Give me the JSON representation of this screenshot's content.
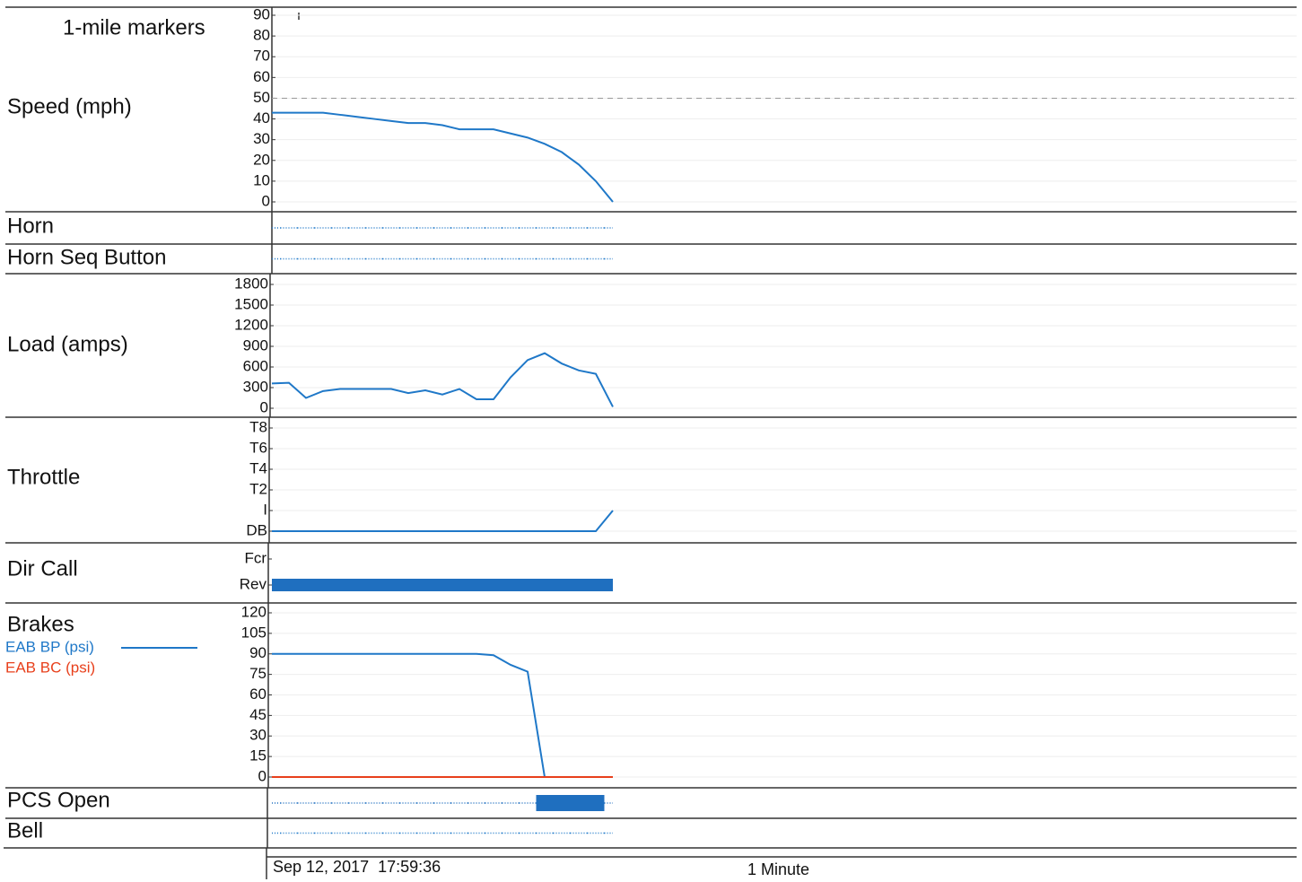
{
  "chart_data": [
    {
      "type": "line",
      "label": "Speed (mph)",
      "annotation": "1-mile markers",
      "ylim": [
        0,
        90
      ],
      "yticks": [
        0,
        10,
        20,
        30,
        40,
        50,
        60,
        70,
        80,
        90
      ],
      "grid": true,
      "reference_line": 50,
      "series": [
        {
          "color": "#1f78c8",
          "values": [
            43,
            43,
            43,
            43,
            42,
            41,
            40,
            39,
            38,
            38,
            37,
            35,
            35,
            35,
            33,
            31,
            28,
            24,
            18,
            10,
            0
          ]
        }
      ]
    },
    {
      "type": "state",
      "label": "Horn",
      "values": [
        0,
        0,
        0,
        0,
        0,
        0,
        0,
        0,
        0,
        0,
        0,
        0,
        0,
        0,
        0,
        0,
        0,
        0,
        0,
        0,
        0
      ],
      "color": "#1f78c8"
    },
    {
      "type": "state",
      "label": "Horn Seq Button",
      "values": [
        0,
        0,
        0,
        0,
        0,
        0,
        0,
        0,
        0,
        0,
        0,
        0,
        0,
        0,
        0,
        0,
        0,
        0,
        0,
        0,
        0
      ],
      "color": "#1f78c8"
    },
    {
      "type": "line",
      "label": "Load (amps)",
      "ylim": [
        0,
        1800
      ],
      "yticks": [
        0,
        300,
        600,
        900,
        1200,
        1500,
        1800
      ],
      "grid": true,
      "series": [
        {
          "color": "#1f78c8",
          "values": [
            360,
            370,
            150,
            250,
            280,
            280,
            280,
            280,
            220,
            260,
            200,
            280,
            130,
            130,
            450,
            700,
            800,
            650,
            550,
            500,
            20
          ]
        }
      ]
    },
    {
      "type": "line",
      "label": "Throttle",
      "ylim": [
        -2,
        8
      ],
      "yticks": [
        {
          "value": -2,
          "label": "DB"
        },
        {
          "value": 0,
          "label": "I"
        },
        {
          "value": 2,
          "label": "T2"
        },
        {
          "value": 4,
          "label": "T4"
        },
        {
          "value": 6,
          "label": "T6"
        },
        {
          "value": 8,
          "label": "T8"
        }
      ],
      "grid": true,
      "series": [
        {
          "color": "#1f78c8",
          "values": [
            -2,
            -2,
            -2,
            -2,
            -2,
            -2,
            -2,
            -2,
            -2,
            -2,
            -2,
            -2,
            -2,
            -2,
            -2,
            -2,
            -2,
            -2,
            -2,
            -2,
            0
          ]
        }
      ]
    },
    {
      "type": "step",
      "label": "Dir Call",
      "ylim": [
        0,
        1
      ],
      "yticks": [
        {
          "value": 0,
          "label": "Rev"
        },
        {
          "value": 1,
          "label": "Fcr"
        }
      ],
      "color": "#1f6fbf",
      "values": [
        0,
        0,
        0,
        0,
        0,
        0,
        0,
        0,
        0,
        0,
        0,
        0,
        0,
        0,
        0,
        0,
        0,
        0,
        0,
        0,
        0
      ]
    },
    {
      "type": "line",
      "label": "Brakes",
      "ylim": [
        0,
        120
      ],
      "yticks": [
        0,
        15,
        30,
        45,
        60,
        75,
        90,
        105,
        120
      ],
      "grid": true,
      "series": [
        {
          "name": "EAB BP (psi)",
          "color": "#1f78c8",
          "values": [
            90,
            90,
            90,
            90,
            90,
            90,
            90,
            90,
            90,
            90,
            90,
            90,
            90,
            89,
            82,
            77,
            0,
            0,
            0,
            0,
            0
          ]
        },
        {
          "name": "EAB BC (psi)",
          "color": "#e8401c",
          "values": [
            0,
            0,
            0,
            0,
            0,
            0,
            0,
            0,
            0,
            0,
            0,
            0,
            0,
            0,
            0,
            0,
            0,
            0,
            0,
            0,
            0
          ]
        }
      ]
    },
    {
      "type": "state",
      "label": "PCS Open",
      "values": [
        0,
        0,
        0,
        0,
        0,
        0,
        0,
        0,
        0,
        0,
        0,
        0,
        0,
        0,
        0,
        0,
        1,
        1,
        1,
        1,
        0
      ],
      "color": "#1f6fbf"
    },
    {
      "type": "state",
      "label": "Bell",
      "values": [
        0,
        0,
        0,
        0,
        0,
        0,
        0,
        0,
        0,
        0,
        0,
        0,
        0,
        0,
        0,
        0,
        0,
        0,
        0,
        0,
        0
      ],
      "color": "#1f78c8"
    }
  ],
  "footer": {
    "start_time": "Sep 12, 2017  17:59:36",
    "time_scale": "1 Minute"
  }
}
